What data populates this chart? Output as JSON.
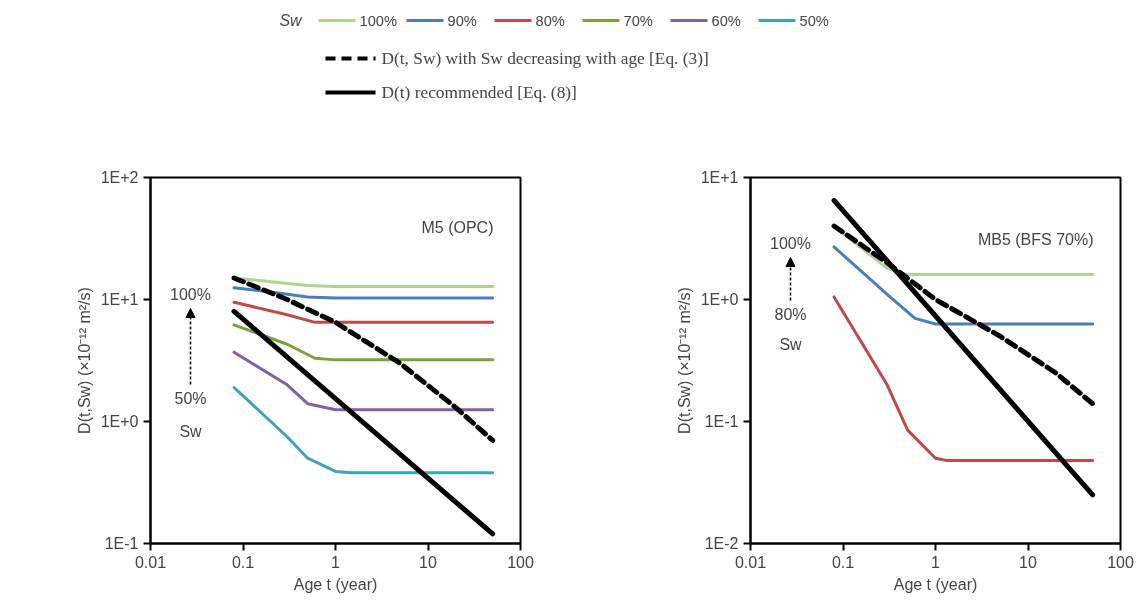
{
  "chart_data": [
    {
      "type": "line",
      "legend_title": "Sw",
      "legend": "top",
      "log": "xy",
      "grid": false,
      "xlabel": "Age t (year)",
      "ylabel": "D(t,Sw) (×10⁻¹² m²/s)",
      "xlim": [
        0.01,
        100
      ],
      "ylim": [
        0.1,
        100
      ],
      "xticks": [
        0.01,
        0.1,
        1,
        10,
        100
      ],
      "yticks": [
        {
          "value": 0.1,
          "label": "1E-1"
        },
        {
          "value": 1,
          "label": "1E+0"
        },
        {
          "value": 10,
          "label": "1E+1"
        },
        {
          "value": 100,
          "label": "1E+2"
        }
      ],
      "annotations": [
        "M5 (OPC)",
        "100%",
        "50%",
        "Sw"
      ],
      "series": [
        {
          "name": "100%",
          "color": "#b0d490",
          "x": [
            0.08,
            0.2,
            0.5,
            1,
            50
          ],
          "values": [
            15,
            14,
            13,
            12.8,
            12.8
          ]
        },
        {
          "name": "90%",
          "color": "#4a7ebb",
          "x": [
            0.08,
            0.2,
            0.5,
            1,
            50
          ],
          "values": [
            12.5,
            11.5,
            10.5,
            10.3,
            10.3
          ]
        },
        {
          "name": "80%",
          "color": "#be4b48",
          "x": [
            0.08,
            0.3,
            0.6,
            1,
            50
          ],
          "values": [
            9.5,
            7.5,
            6.5,
            6.5,
            6.5
          ]
        },
        {
          "name": "70%",
          "color": "#77a33b",
          "x": [
            0.08,
            0.3,
            0.6,
            1,
            50
          ],
          "values": [
            6.2,
            4.3,
            3.3,
            3.2,
            3.2
          ]
        },
        {
          "name": "60%",
          "color": "#7f62a1",
          "x": [
            0.08,
            0.3,
            0.5,
            1,
            50
          ],
          "values": [
            3.7,
            2,
            1.4,
            1.25,
            1.25
          ]
        },
        {
          "name": "50%",
          "color": "#3fa1ba",
          "x": [
            0.08,
            0.3,
            0.5,
            1,
            1.5,
            50
          ],
          "values": [
            1.9,
            0.75,
            0.5,
            0.39,
            0.38,
            0.38
          ]
        },
        {
          "name": "D(t, Sw) with Sw decreasing with age [Eq. (3)]",
          "color": "#000000",
          "line_style": "dashed",
          "x": [
            0.08,
            0.3,
            1,
            5,
            20,
            50
          ],
          "values": [
            15,
            10,
            6.5,
            3,
            1.3,
            0.7
          ]
        },
        {
          "name": "D(t) recommended [Eq. (8)]",
          "color": "#000000",
          "line_style": "solid",
          "x": [
            0.08,
            50
          ],
          "values": [
            8,
            0.12
          ]
        }
      ]
    },
    {
      "type": "line",
      "log": "xy",
      "grid": false,
      "xlabel": "Age t (year)",
      "ylabel": "D(t,Sw) (×10⁻¹² m²/s)",
      "xlim": [
        0.01,
        100
      ],
      "ylim": [
        0.01,
        10
      ],
      "xticks": [
        0.01,
        0.1,
        1,
        10,
        100
      ],
      "yticks": [
        {
          "value": 0.01,
          "label": "1E-2"
        },
        {
          "value": 0.1,
          "label": "1E-1"
        },
        {
          "value": 1,
          "label": "1E+0"
        },
        {
          "value": 10,
          "label": "1E+1"
        }
      ],
      "annotations": [
        "MB5 (BFS 70%)",
        "100%",
        "80%",
        "Sw"
      ],
      "series": [
        {
          "color": "#b0d490",
          "x": [
            0.08,
            0.3,
            0.5,
            50
          ],
          "values": [
            4,
            1.8,
            1.6,
            1.6
          ]
        },
        {
          "color": "#4a7ebb",
          "x": [
            0.08,
            0.3,
            0.6,
            1,
            50
          ],
          "values": [
            2.7,
            1.1,
            0.7,
            0.63,
            0.63
          ]
        },
        {
          "color": "#be4b48",
          "x": [
            0.08,
            0.3,
            0.5,
            1,
            1.3,
            50
          ],
          "values": [
            1.05,
            0.2,
            0.085,
            0.05,
            0.048,
            0.048
          ]
        },
        {
          "color": "#000000",
          "line_style": "dashed",
          "x": [
            0.08,
            0.3,
            1,
            5,
            20,
            50
          ],
          "values": [
            4,
            2,
            1,
            0.5,
            0.25,
            0.14
          ]
        },
        {
          "color": "#000000",
          "line_style": "solid",
          "x": [
            0.08,
            50
          ],
          "values": [
            6.5,
            0.025
          ]
        }
      ]
    }
  ]
}
